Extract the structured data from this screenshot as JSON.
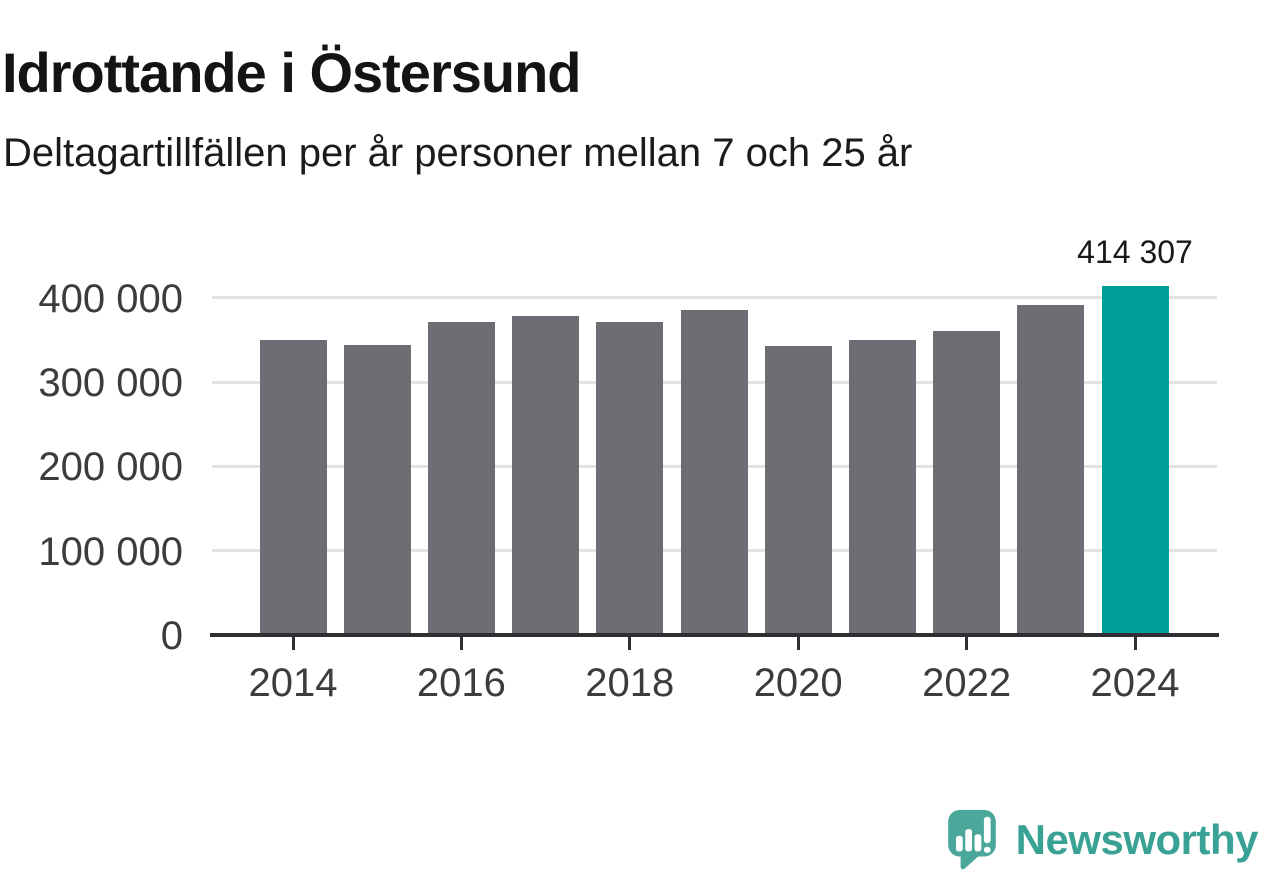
{
  "header": {
    "title": "Idrottande i Östersund",
    "subtitle": "Deltagartillfällen per år personer mellan 7 och 25 år"
  },
  "chart_data": {
    "type": "bar",
    "title": "Idrottande i Östersund",
    "subtitle": "Deltagartillfällen per år personer mellan 7 och 25 år",
    "categories": [
      "2014",
      "2015",
      "2016",
      "2017",
      "2018",
      "2019",
      "2020",
      "2021",
      "2022",
      "2023",
      "2024"
    ],
    "values": [
      350000,
      344000,
      371000,
      378000,
      371000,
      385000,
      343000,
      350000,
      361000,
      392000,
      414307
    ],
    "highlight_category": "2024",
    "annotation": {
      "category": "2024",
      "text": "414 307"
    },
    "yticks": [
      {
        "value": 0,
        "label": "0"
      },
      {
        "value": 100000,
        "label": "100 000"
      },
      {
        "value": 200000,
        "label": "200 000"
      },
      {
        "value": 300000,
        "label": "300 000"
      },
      {
        "value": 400000,
        "label": "400 000"
      }
    ],
    "xtick_labels": [
      "2014",
      "2016",
      "2018",
      "2020",
      "2022",
      "2024"
    ],
    "ylim": [
      0,
      420000
    ],
    "grid": "horizontal",
    "legend": "none",
    "colors": {
      "bar": "#6e6d73",
      "highlight": "#009e98",
      "gridline": "#e2e2e2",
      "axis": "#2e2e33",
      "tick_text": "#3c3c3c",
      "annotation_text": "#191919"
    }
  },
  "footer": {
    "brand": "Newsworthy",
    "logo_color": "#4aa79a",
    "text_color": "#3aa295"
  }
}
